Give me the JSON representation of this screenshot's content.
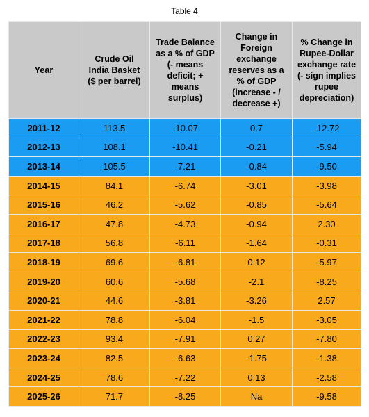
{
  "title": "Table 4",
  "table": {
    "header": [
      [
        "Year"
      ],
      [
        "Crude Oil",
        "India Basket",
        "($ per barrel)"
      ],
      [
        "Trade Balance",
        "as a % of GDP",
        "(- means",
        "deficit; +",
        "means",
        "surplus)"
      ],
      [
        "Change in",
        "Foreign",
        "exchange",
        "reserves as a",
        "% of GDP",
        "(increase - /",
        "decrease +)"
      ],
      [
        "% Change in",
        "Rupee-Dollar",
        "exchange rate",
        "(- sign implies",
        "rupee",
        "depreciation)"
      ]
    ],
    "rows": [
      [
        "2011-12",
        "113.5",
        "-10.07",
        "0.7",
        "-12.72"
      ],
      [
        "2012-13",
        "108.1",
        "-10.41",
        "-0.21",
        "-5.94"
      ],
      [
        "2013-14",
        "105.5",
        "-7.21",
        "-0.84",
        "-9.50"
      ],
      [
        "2014-15",
        "84.1",
        "-6.74",
        "-3.01",
        "-3.98"
      ],
      [
        "2015-16",
        "46.2",
        "-5.62",
        "-0.85",
        "-5.64"
      ],
      [
        "2016-17",
        "47.8",
        "-4.73",
        "-0.94",
        "2.30"
      ],
      [
        "2017-18",
        "56.8",
        "-6.11",
        "-1.64",
        "-0.31"
      ],
      [
        "2018-19",
        "69.6",
        "-6.81",
        "0.12",
        "-5.97"
      ],
      [
        "2019-20",
        "60.6",
        "-5.68",
        "-2.1",
        "-8.25"
      ],
      [
        "2020-21",
        "44.6",
        "-3.81",
        "-3.26",
        "2.57"
      ],
      [
        "2021-22",
        "78.8",
        "-6.04",
        "-1.5",
        "-3.05"
      ],
      [
        "2022-23",
        "93.4",
        "-7.91",
        "0.27",
        "-7.80"
      ],
      [
        "2023-24",
        "82.5",
        "-6.63",
        "-1.75",
        "-1.38"
      ],
      [
        "2024-25",
        "78.6",
        "-7.22",
        "0.13",
        "-2.58"
      ],
      [
        "2025-26",
        "71.7",
        "-8.25",
        "Na",
        "-9.58"
      ]
    ],
    "row_colors": [
      "#1a9cf2",
      "#1a9cf2",
      "#1a9cf2",
      "#f8a91c",
      "#f8a91c",
      "#f8a91c",
      "#f8a91c",
      "#f8a91c",
      "#f8a91c",
      "#f8a91c",
      "#f8a91c",
      "#f8a91c",
      "#f8a91c",
      "#f8a91c",
      "#f8a91c"
    ],
    "header_color": "#c9c9c9"
  }
}
